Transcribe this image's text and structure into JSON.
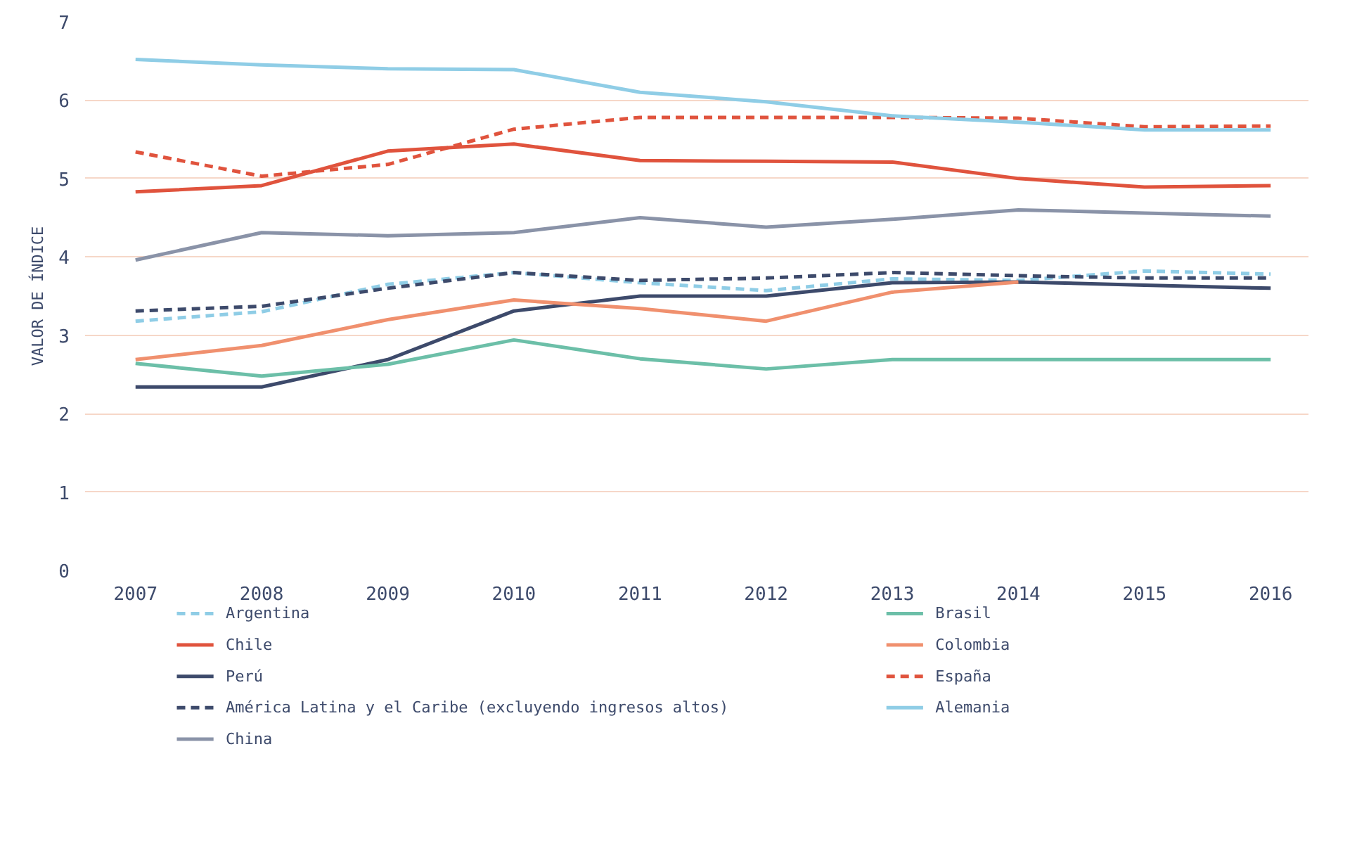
{
  "chart_data": {
    "type": "line",
    "ylabel": "VALOR DE ÍNDICE",
    "x": [
      2007,
      2008,
      2009,
      2010,
      2011,
      2012,
      2013,
      2014,
      2015,
      2016
    ],
    "xlim": [
      2006.6,
      2016.3
    ],
    "xticks": [
      2007,
      2008,
      2009,
      2010,
      2011,
      2012,
      2013,
      2014,
      2015,
      2016
    ],
    "ylim": [
      0,
      7
    ],
    "yticks": [
      0,
      1,
      2,
      3,
      4,
      5,
      6,
      7
    ],
    "grid": "y",
    "legend": "bottom",
    "series": [
      {
        "name": "Argentina",
        "color": "#8fcde6",
        "line_style": "dashed",
        "values": [
          3.18,
          3.3,
          3.65,
          3.8,
          3.67,
          3.57,
          3.72,
          3.7,
          3.82,
          3.78
        ]
      },
      {
        "name": "Chile",
        "color": "#e0533d",
        "line_style": "solid",
        "values": [
          4.83,
          4.91,
          5.35,
          5.44,
          5.23,
          5.22,
          5.21,
          5.0,
          4.89,
          4.91
        ]
      },
      {
        "name": "Perú",
        "color": "#3d4a6b",
        "line_style": "solid",
        "values": [
          2.34,
          2.34,
          2.69,
          3.31,
          3.5,
          3.5,
          3.67,
          3.68,
          3.64,
          3.6
        ]
      },
      {
        "name": "América Latina y el Caribe (excluyendo ingresos altos)",
        "color": "#3d4a6b",
        "line_style": "dashed",
        "values": [
          3.31,
          3.37,
          3.6,
          3.8,
          3.7,
          3.73,
          3.8,
          3.76,
          3.73,
          3.73
        ]
      },
      {
        "name": "China",
        "color": "#8a93a8",
        "line_style": "solid",
        "values": [
          3.96,
          4.31,
          4.27,
          4.31,
          4.5,
          4.38,
          4.48,
          4.6,
          4.56,
          4.52
        ]
      },
      {
        "name": "Brasil",
        "color": "#6cbfa8",
        "line_style": "solid",
        "values": [
          2.64,
          2.48,
          2.63,
          2.94,
          2.7,
          2.57,
          2.69,
          2.69,
          2.69,
          2.69
        ]
      },
      {
        "name": "Colombia",
        "color": "#f0906e",
        "line_style": "solid",
        "values": [
          2.69,
          2.87,
          3.2,
          3.45,
          3.34,
          3.18,
          3.55,
          3.68,
          null,
          null
        ]
      },
      {
        "name": "España",
        "color": "#e0533d",
        "line_style": "dashed",
        "values": [
          5.34,
          5.03,
          5.18,
          5.63,
          5.78,
          5.78,
          5.78,
          5.77,
          5.66,
          5.67
        ]
      },
      {
        "name": "Alemania",
        "color": "#8fcde6",
        "line_style": "solid",
        "values": [
          6.52,
          6.45,
          6.4,
          6.39,
          6.1,
          5.98,
          5.8,
          5.72,
          5.62,
          5.62
        ]
      }
    ]
  }
}
